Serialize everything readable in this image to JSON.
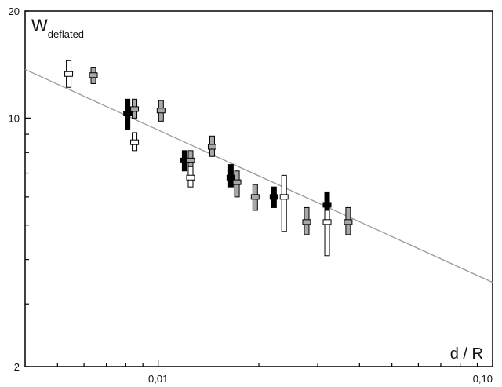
{
  "chart_data": {
    "type": "scatter",
    "x_scale": "log",
    "y_scale": "log",
    "xlim": [
      0.004,
      0.1
    ],
    "ylim": [
      2,
      20
    ],
    "y_ticks_labeled": [
      "20",
      "10",
      "2"
    ],
    "y_tick_values": [
      20,
      10,
      2
    ],
    "x_ticks_labeled": [
      "0,01",
      "0,10"
    ],
    "x_tick_values": [
      0.01,
      0.1
    ],
    "ylabel_main": "W",
    "ylabel_sub": "deflated",
    "xlabel": "d / R",
    "fit_line": {
      "x": [
        0.004,
        0.1
      ],
      "y": [
        13.7,
        3.45
      ]
    },
    "colors": {
      "black": "#000000",
      "gray": "#a8a8a8",
      "white": "#ffffff",
      "line": "#9a9a9a"
    },
    "points": [
      {
        "x": 0.0054,
        "y": 13.3,
        "y_low": 12.2,
        "y_high": 14.5,
        "color": "white"
      },
      {
        "x": 0.0064,
        "y": 13.2,
        "y_low": 12.5,
        "y_high": 13.9,
        "color": "gray"
      },
      {
        "x": 0.0081,
        "y": 10.3,
        "y_low": 9.3,
        "y_high": 11.3,
        "color": "black"
      },
      {
        "x": 0.0085,
        "y": 10.6,
        "y_low": 10.0,
        "y_high": 11.3,
        "color": "gray"
      },
      {
        "x": 0.0085,
        "y": 8.55,
        "y_low": 8.1,
        "y_high": 9.1,
        "color": "white"
      },
      {
        "x": 0.0102,
        "y": 10.5,
        "y_low": 9.8,
        "y_high": 11.2,
        "color": "gray"
      },
      {
        "x": 0.012,
        "y": 7.6,
        "y_low": 7.1,
        "y_high": 8.1,
        "color": "black"
      },
      {
        "x": 0.0125,
        "y": 7.6,
        "y_low": 7.0,
        "y_high": 8.1,
        "color": "gray"
      },
      {
        "x": 0.0125,
        "y": 6.8,
        "y_low": 6.4,
        "y_high": 7.3,
        "color": "white"
      },
      {
        "x": 0.0145,
        "y": 8.3,
        "y_low": 7.8,
        "y_high": 8.9,
        "color": "gray"
      },
      {
        "x": 0.0165,
        "y": 6.8,
        "y_low": 6.4,
        "y_high": 7.4,
        "color": "black"
      },
      {
        "x": 0.0172,
        "y": 6.6,
        "y_low": 6.0,
        "y_high": 7.1,
        "color": "gray"
      },
      {
        "x": 0.0195,
        "y": 6.0,
        "y_low": 5.5,
        "y_high": 6.5,
        "color": "gray"
      },
      {
        "x": 0.0222,
        "y": 6.0,
        "y_low": 5.6,
        "y_high": 6.4,
        "color": "black"
      },
      {
        "x": 0.0238,
        "y": 6.0,
        "y_low": 4.8,
        "y_high": 6.9,
        "color": "white"
      },
      {
        "x": 0.0278,
        "y": 5.1,
        "y_low": 4.7,
        "y_high": 5.6,
        "color": "gray"
      },
      {
        "x": 0.032,
        "y": 5.7,
        "y_low": 5.2,
        "y_high": 6.2,
        "color": "black"
      },
      {
        "x": 0.032,
        "y": 5.1,
        "y_low": 4.1,
        "y_high": 5.5,
        "color": "white"
      },
      {
        "x": 0.037,
        "y": 5.1,
        "y_low": 4.7,
        "y_high": 5.6,
        "color": "gray"
      }
    ]
  }
}
